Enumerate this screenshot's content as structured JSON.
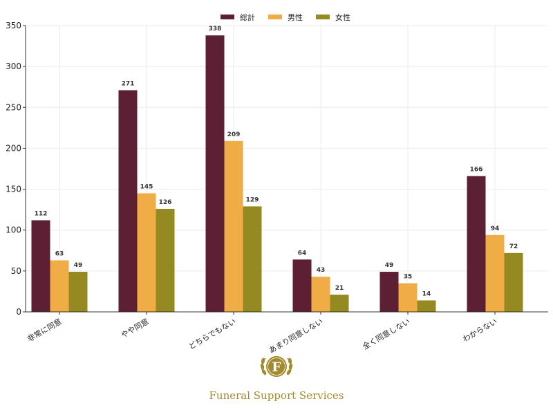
{
  "chart_data": {
    "type": "bar",
    "title": "",
    "xlabel": "",
    "ylabel": "",
    "categories": [
      "非常に同意",
      "やや同意",
      "どちらでもない",
      "あまり同意しない",
      "全く同意しない",
      "わからない"
    ],
    "series": [
      {
        "name": "総計",
        "color": "#5c1f33",
        "values": [
          112,
          271,
          338,
          64,
          49,
          166
        ]
      },
      {
        "name": "男性",
        "color": "#f0ac45",
        "values": [
          63,
          145,
          209,
          43,
          35,
          94
        ]
      },
      {
        "name": "女性",
        "color": "#948a21",
        "values": [
          49,
          126,
          129,
          21,
          14,
          72
        ]
      }
    ],
    "ylim": [
      0,
      350
    ],
    "yticks": [
      0,
      50,
      100,
      150,
      200,
      250,
      300,
      350
    ],
    "grid": true,
    "legend_position": "top-center"
  },
  "logo": {
    "letter": "F",
    "text": "Funeral Support Services",
    "color": "#a38a2e"
  }
}
